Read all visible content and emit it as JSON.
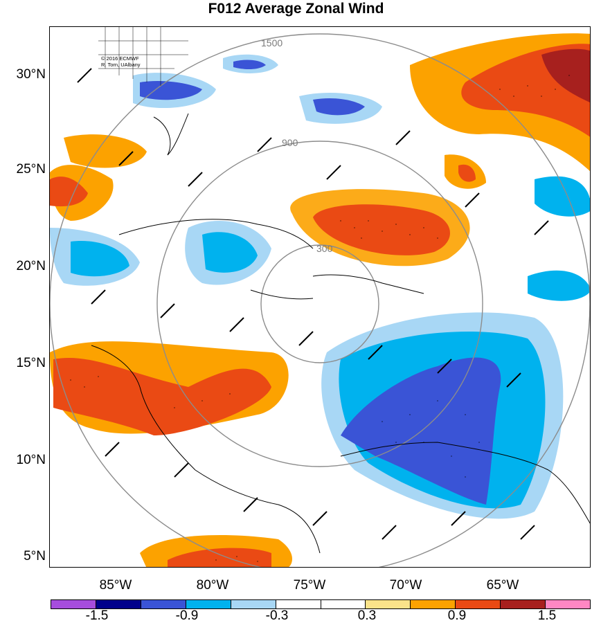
{
  "title": "F012 Average Zonal Wind",
  "credit": {
    "line1": "© 2016 ECMWF",
    "line2": "R. Torn, UAlbany"
  },
  "lat_labels": [
    "30°N",
    "25°N",
    "20°N",
    "15°N",
    "10°N",
    "5°N"
  ],
  "lon_labels": [
    "85°W",
    "80°W",
    "75°W",
    "70°W",
    "65°W"
  ],
  "range_ring_labels": [
    "300",
    "900",
    "1500"
  ],
  "colorbar": {
    "colors": [
      "#a64ddd",
      "#00008b",
      "#3a54d6",
      "#00b2ee",
      "#a8d7f5",
      "#ffffff",
      "#ffffff",
      "#fbe38a",
      "#fca200",
      "#ea4a14",
      "#a7201e",
      "#ff87c3"
    ],
    "labels": [
      "-1.5",
      "-0.9",
      "-0.3",
      "0.3",
      "0.9",
      "1.5"
    ]
  }
}
